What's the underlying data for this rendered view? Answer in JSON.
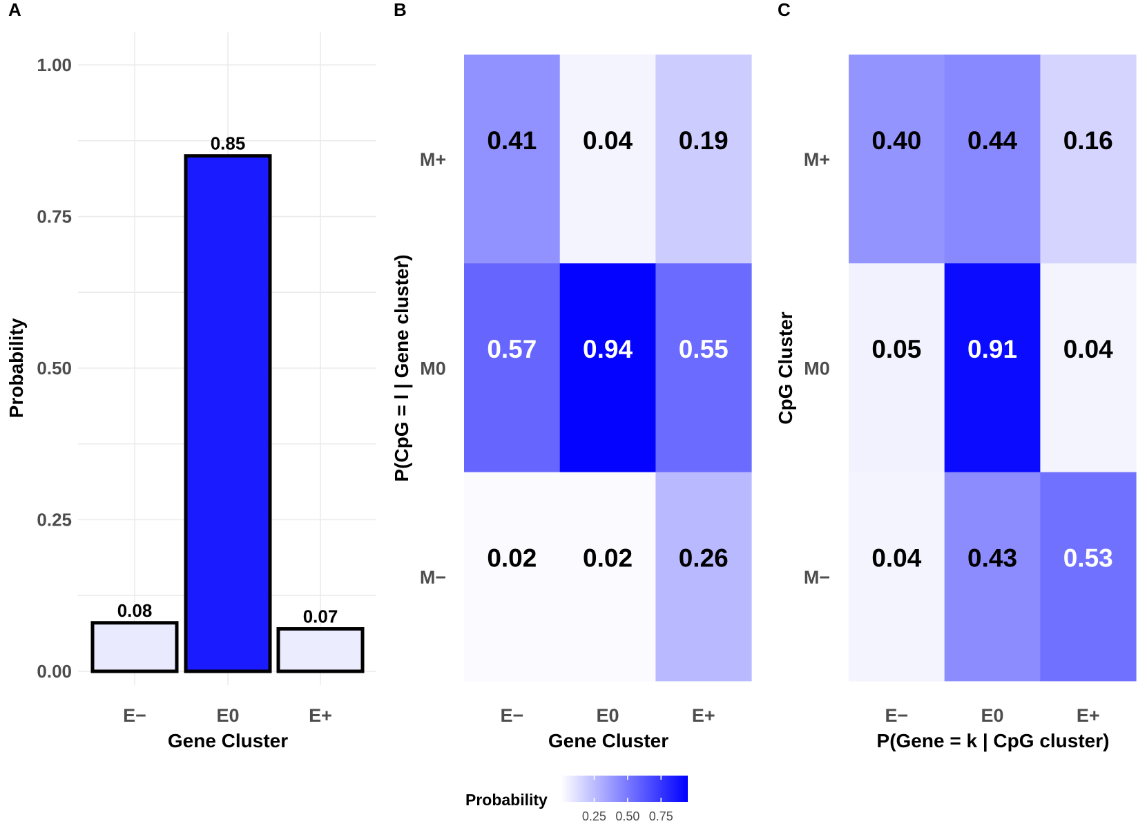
{
  "colors": {
    "scale_low": "#ffffff",
    "scale_high": "#0000ff",
    "grid": "#ebebeb",
    "axis_text": "#4d4d4d",
    "text_dark": "#000000",
    "text_light": "#ffffff",
    "bar_border": "#000000"
  },
  "panels": {
    "a": {
      "letter": "A"
    },
    "b": {
      "letter": "B"
    },
    "c": {
      "letter": "C"
    }
  },
  "legend": {
    "title": "Probability",
    "ticks": [
      "0.25",
      "0.50",
      "0.75"
    ],
    "tick_values": [
      0.25,
      0.5,
      0.75
    ],
    "range": [
      0.0,
      0.95
    ]
  },
  "chart_data": [
    {
      "panel": "A",
      "type": "bar",
      "title": "",
      "xlabel": "Gene Cluster",
      "ylabel": "Probability",
      "categories": [
        "E−",
        "E0",
        "E+"
      ],
      "values": [
        0.08,
        0.85,
        0.07
      ],
      "value_labels": [
        "0.08",
        "0.85",
        "0.07"
      ],
      "ylim": [
        0,
        1.0
      ],
      "y_ticks": [
        0,
        0.25,
        0.5,
        0.75,
        1.0
      ],
      "y_tick_labels": [
        "0.00",
        "0.25",
        "0.50",
        "0.75",
        "1.00"
      ],
      "fill": "probability (white to blue)",
      "grid": true
    },
    {
      "panel": "B",
      "type": "heatmap",
      "title": "",
      "xlabel": "Gene Cluster",
      "ylabel": "P(CpG = l | Gene cluster)",
      "x_categories": [
        "E−",
        "E0",
        "E+"
      ],
      "y_categories": [
        "M+",
        "M0",
        "M−"
      ],
      "values": [
        [
          0.41,
          0.04,
          0.19
        ],
        [
          0.57,
          0.94,
          0.55
        ],
        [
          0.02,
          0.02,
          0.26
        ]
      ],
      "value_labels": [
        [
          "0.41",
          "0.04",
          "0.19"
        ],
        [
          "0.57",
          "0.94",
          "0.55"
        ],
        [
          "0.02",
          "0.02",
          "0.26"
        ]
      ]
    },
    {
      "panel": "C",
      "type": "heatmap",
      "title": "",
      "xlabel": "P(Gene = k | CpG cluster)",
      "ylabel": "CpG Cluster",
      "x_categories": [
        "E−",
        "E0",
        "E+"
      ],
      "y_categories": [
        "M+",
        "M0",
        "M−"
      ],
      "values": [
        [
          0.4,
          0.44,
          0.16
        ],
        [
          0.05,
          0.91,
          0.04
        ],
        [
          0.04,
          0.43,
          0.53
        ]
      ],
      "value_labels": [
        [
          "0.40",
          "0.44",
          "0.16"
        ],
        [
          "0.05",
          "0.91",
          "0.04"
        ],
        [
          "0.04",
          "0.43",
          "0.53"
        ]
      ]
    }
  ]
}
